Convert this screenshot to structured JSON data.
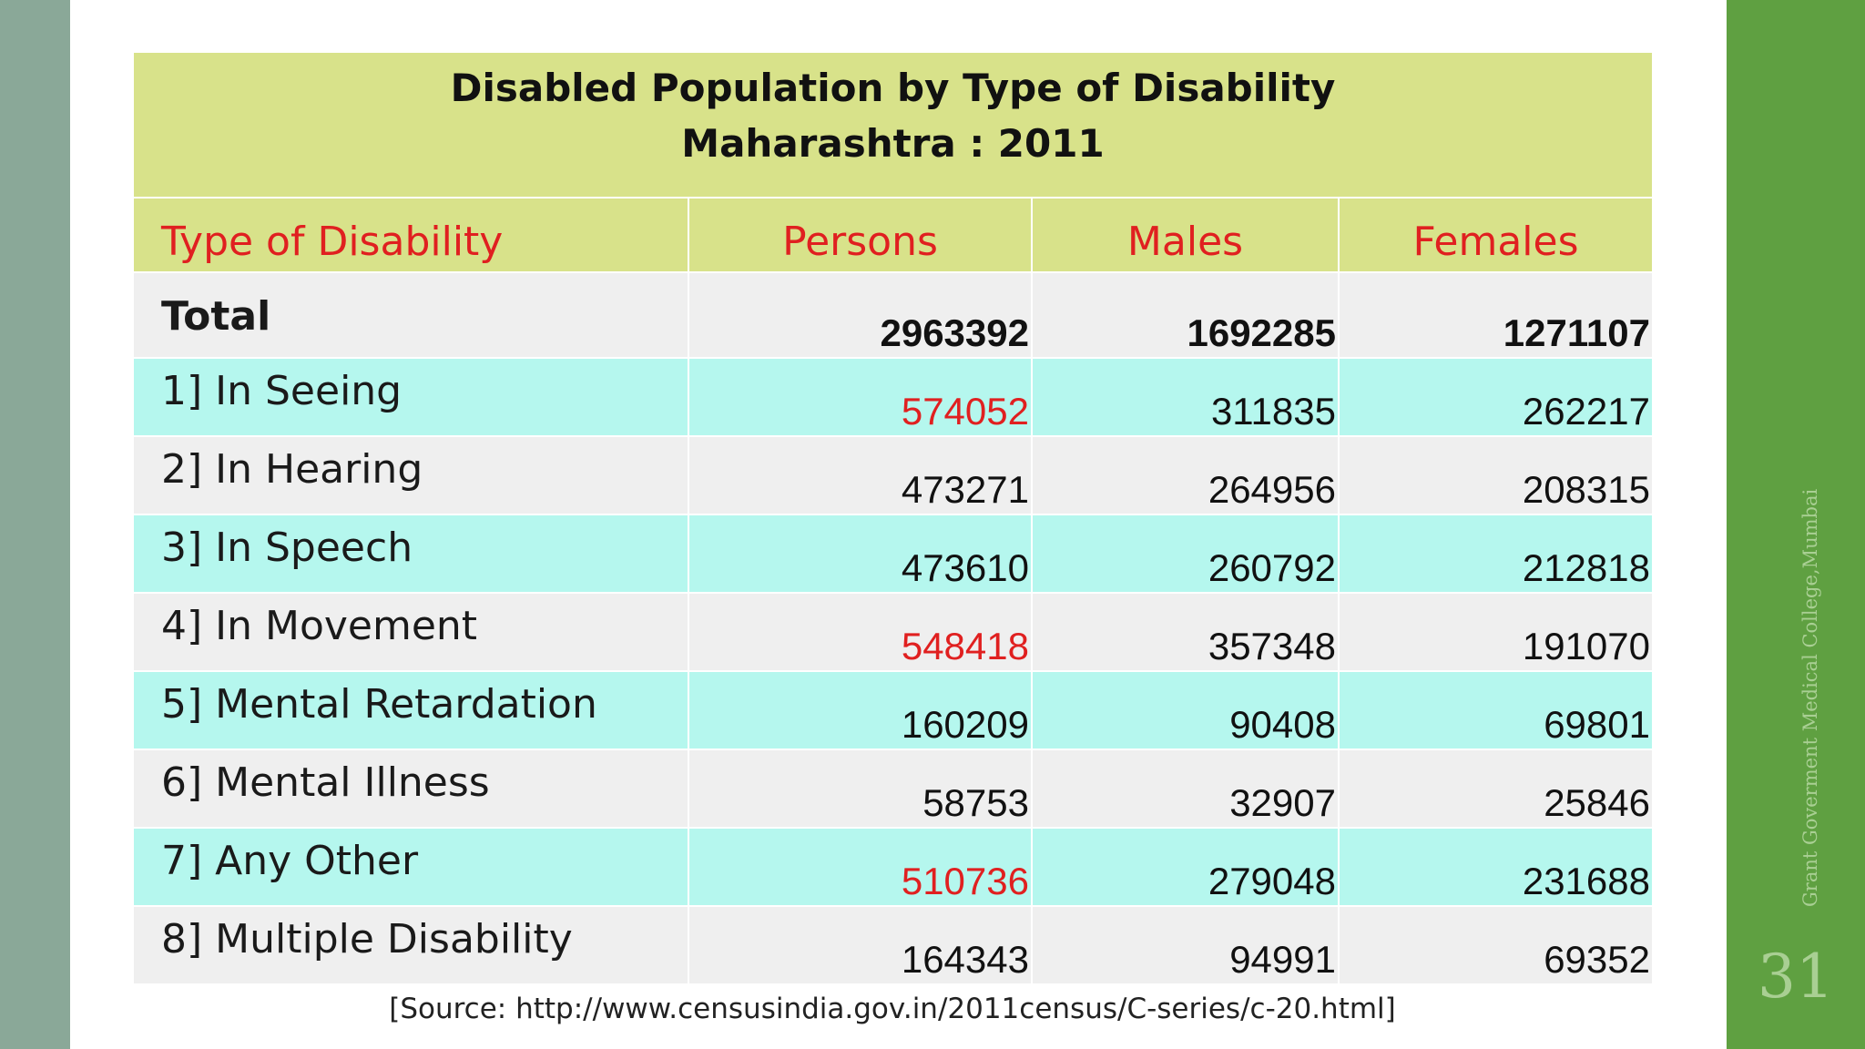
{
  "title": {
    "line1": "Disabled Population by Type of Disability",
    "line2": "Maharashtra : 2011"
  },
  "headers": [
    "Type of Disability",
    "Persons",
    "Males",
    "Females"
  ],
  "total": {
    "label": "Total",
    "persons": "2963392",
    "males": "1692285",
    "females": "1271107"
  },
  "rows": [
    {
      "label": "1] In Seeing",
      "persons": "574052",
      "males": "311835",
      "females": "262217",
      "highlight": true
    },
    {
      "label": "2] In Hearing",
      "persons": "473271",
      "males": "264956",
      "females": "208315",
      "highlight": false
    },
    {
      "label": "3] In Speech",
      "persons": "473610",
      "males": "260792",
      "females": "212818",
      "highlight": false
    },
    {
      "label": "4] In Movement",
      "persons": "548418",
      "males": "357348",
      "females": "191070",
      "highlight": true
    },
    {
      "label": "5] Mental Retardation",
      "persons": "160209",
      "males": "90408",
      "females": "69801",
      "highlight": false
    },
    {
      "label": "6] Mental Illness",
      "persons": "58753",
      "males": "32907",
      "females": "25846",
      "highlight": false
    },
    {
      "label": "7] Any Other",
      "persons": "510736",
      "males": "279048",
      "females": "231688",
      "highlight": true
    },
    {
      "label": "8] Multiple Disability",
      "persons": "164343",
      "males": "94991",
      "females": "69352",
      "highlight": false
    }
  ],
  "source": "[Source: http://www.censusindia.gov.in/2011census/C-series/c-20.html]",
  "side_text": "Grant Goverment Medical College,Mumbai",
  "slide_number": "31",
  "colors": {
    "title_bg": "#d8e28a",
    "header_text": "#e02020",
    "row_cyan": "#b5f7ee",
    "row_gray": "#efefef",
    "left_bar": "#8aa898",
    "right_bar": "#5fa041"
  }
}
